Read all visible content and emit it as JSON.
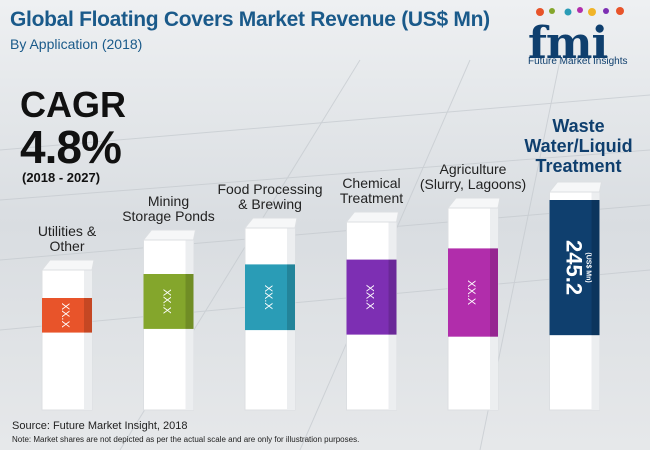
{
  "header": {
    "title": "Global Floating Covers Market Revenue (US$ Mn)",
    "subtitle": "By Application (2018)"
  },
  "logo": {
    "word": "fmi",
    "tagline": "Future Market Insights"
  },
  "cagr": {
    "label": "CAGR",
    "value": "4.8%",
    "period": "(2018 - 2027)"
  },
  "chart_data": {
    "type": "bar",
    "title": "Global Floating Covers Market Revenue (US$ Mn)",
    "subtitle": "By Application (2018)",
    "categories": [
      "Utilities & Other",
      "Mining Storage Ponds",
      "Food Processing & Brewing",
      "Chemical Treatment",
      "Agriculture (Slurry, Lagoons)",
      "Waste Water/Liquid Treatment"
    ],
    "category_lines": [
      [
        "Utilities &",
        "Other"
      ],
      [
        "Mining",
        "Storage Ponds"
      ],
      [
        "Food Processing",
        "& Brewing"
      ],
      [
        "Chemical",
        "Treatment"
      ],
      [
        "Agriculture",
        "(Slurry, Lagoons)"
      ],
      [
        "Waste",
        "Water/Liquid",
        "Treatment"
      ]
    ],
    "data_labels": [
      "XX.X",
      "XX.X",
      "XX.X",
      "XX.X",
      "XX.X",
      "245.2"
    ],
    "values": [
      null,
      null,
      null,
      null,
      null,
      245.2
    ],
    "unit_label": "(US$ Mn)",
    "highlight_index": 5,
    "colors": [
      "#e8542a",
      "#84a62c",
      "#2a9cb6",
      "#7d2fb3",
      "#b12dab",
      "#0f3f6e"
    ],
    "grid": false,
    "legend": "none"
  },
  "footer": {
    "source": "Source: Future Market Insight, 2018",
    "note": "Note: Market shares are not depicted as per the actual scale and are only for illustration purposes."
  }
}
